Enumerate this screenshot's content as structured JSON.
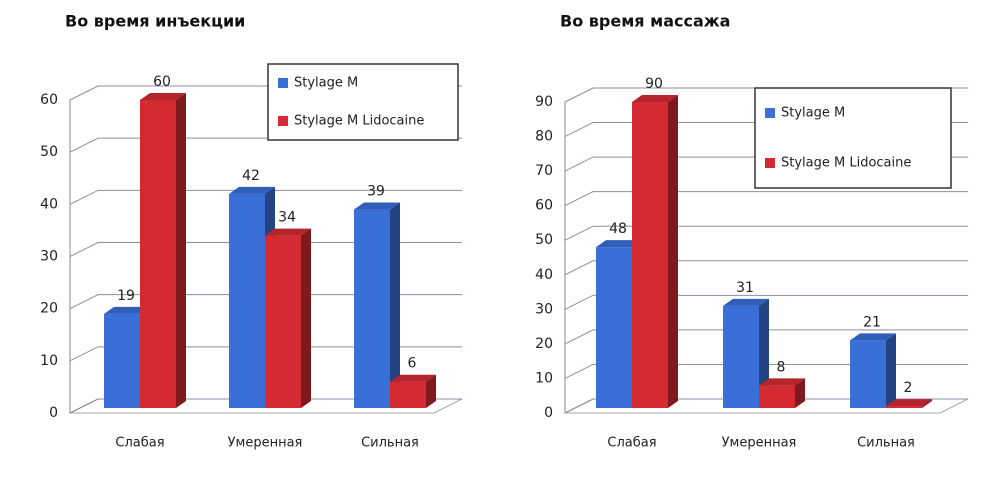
{
  "chart_data": [
    {
      "type": "bar3d",
      "title": "Во время инъекции",
      "categories": [
        "Слабая",
        "Умеренная",
        "Сильная"
      ],
      "series": [
        {
          "name": "Stylage M",
          "color": "#3a6fd8",
          "values": [
            19,
            42,
            39
          ]
        },
        {
          "name": "Stylage M Lidocaine",
          "color": "#d42a32",
          "values": [
            60,
            34,
            6
          ]
        }
      ],
      "ylim": [
        0,
        60
      ],
      "yticks": [
        0,
        10,
        20,
        30,
        40,
        50,
        60
      ],
      "grid": true
    },
    {
      "type": "bar3d",
      "title": "Во время массажа",
      "categories": [
        "Слабая",
        "Умеренная",
        "Сильная"
      ],
      "series": [
        {
          "name": "Stylage M",
          "color": "#3a6fd8",
          "values": [
            48,
            31,
            21
          ]
        },
        {
          "name": "Stylage M Lidocaine",
          "color": "#d42a32",
          "values": [
            90,
            8,
            2
          ]
        }
      ],
      "ylim": [
        0,
        90
      ],
      "yticks": [
        0,
        10,
        20,
        30,
        40,
        50,
        60,
        70,
        80,
        90
      ],
      "grid": true
    }
  ]
}
